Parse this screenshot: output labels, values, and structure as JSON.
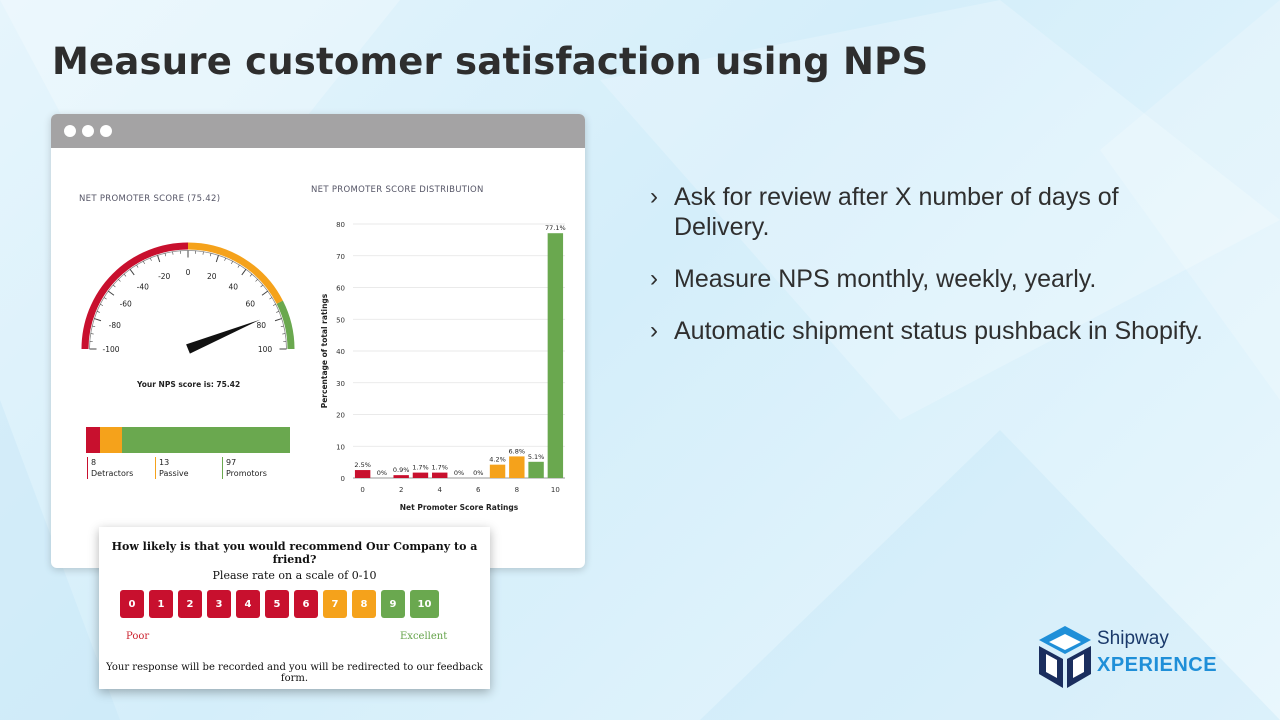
{
  "slide": {
    "title": "Measure customer satisfaction using NPS",
    "bullets": [
      "Ask for review after X number of days of Delivery.",
      "Measure NPS monthly, weekly, yearly.",
      "Automatic shipment status pushback in Shopify."
    ]
  },
  "colors": {
    "detractor": "#c8102e",
    "passive": "#f5a21b",
    "promoter": "#6aa84f",
    "window_bar": "#a4a3a4"
  },
  "dashboard": {
    "nps_title": "NET PROMOTER SCORE (75.42)",
    "distribution_title": "NET PROMOTER SCORE DISTRIBUTION",
    "gauge": {
      "value": 75.42,
      "min": -100,
      "max": 100,
      "tick_labels": [
        "-100",
        "-80",
        "-60",
        "-40",
        "-20",
        "0",
        "20",
        "40",
        "60",
        "80",
        "100"
      ],
      "score_text": "Your NPS score is: 75.42"
    },
    "breakdown": [
      {
        "count": "8",
        "label": "Detractors",
        "color": "#c8102e"
      },
      {
        "count": "13",
        "label": "Passive",
        "color": "#f5a21b"
      },
      {
        "count": "97",
        "label": "Promotors",
        "color": "#6aa84f"
      }
    ]
  },
  "chart_data": {
    "type": "bar",
    "title": "NET PROMOTER SCORE DISTRIBUTION",
    "xlabel": "Net Promoter Score Ratings",
    "ylabel": "Percentage of total ratings",
    "categories": [
      "0",
      "1",
      "2",
      "3",
      "4",
      "5",
      "6",
      "7",
      "8",
      "9",
      "10"
    ],
    "values": [
      2.5,
      0,
      0.9,
      1.7,
      1.7,
      0,
      0,
      4.2,
      6.8,
      5.1,
      77.1
    ],
    "data_labels": [
      "2.5%",
      "0%",
      "0.9%",
      "1.7%",
      "1.7%",
      "0%",
      "0%",
      "4.2%",
      "6.8%",
      "5.1%",
      "77.1%"
    ],
    "colors": [
      "#c8102e",
      "#c8102e",
      "#c8102e",
      "#c8102e",
      "#c8102e",
      "#c8102e",
      "#c8102e",
      "#f5a21b",
      "#f5a21b",
      "#6aa84f",
      "#6aa84f"
    ],
    "x_tick_labels": [
      "0",
      "2",
      "4",
      "6",
      "8",
      "10"
    ],
    "y_ticks": [
      0,
      10,
      20,
      30,
      40,
      50,
      60,
      70,
      80
    ],
    "ylim": [
      0,
      80
    ],
    "grid": true
  },
  "survey": {
    "question": "How likely is that you would recommend Our Company to a friend?",
    "scale_text": "Please rate on a scale of 0-10",
    "ratings": [
      "0",
      "1",
      "2",
      "3",
      "4",
      "5",
      "6",
      "7",
      "8",
      "9",
      "10"
    ],
    "rating_colors": [
      "#c8102e",
      "#c8102e",
      "#c8102e",
      "#c8102e",
      "#c8102e",
      "#c8102e",
      "#c8102e",
      "#f5a21b",
      "#f5a21b",
      "#6aa84f",
      "#6aa84f"
    ],
    "low_label": "Poor",
    "high_label": "Excellent",
    "note": "Your response will be recorded and you will be redirected to our feedback form."
  },
  "brand": {
    "name": "Shipway",
    "sub": "XPERIENCE",
    "logo_icon": "cube-house-icon"
  }
}
